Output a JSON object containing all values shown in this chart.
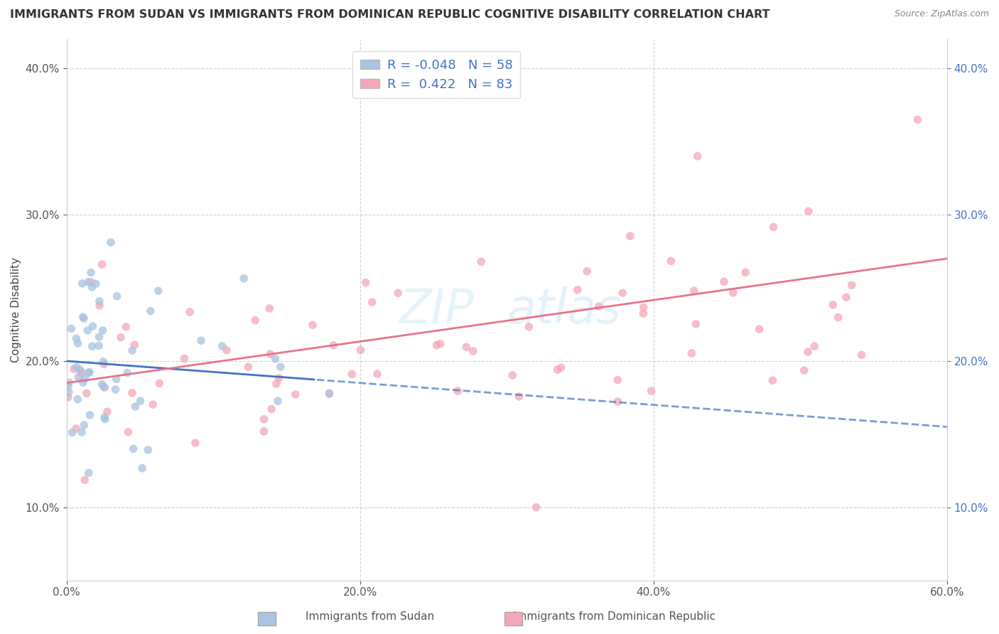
{
  "title": "IMMIGRANTS FROM SUDAN VS IMMIGRANTS FROM DOMINICAN REPUBLIC COGNITIVE DISABILITY CORRELATION CHART",
  "source": "Source: ZipAtlas.com",
  "ylabel_label": "Cognitive Disability",
  "xlim": [
    0.0,
    0.6
  ],
  "ylim": [
    0.05,
    0.42
  ],
  "xtick_vals": [
    0.0,
    0.2,
    0.4,
    0.6
  ],
  "ytick_vals": [
    0.1,
    0.2,
    0.3,
    0.4
  ],
  "sudan_color": "#a8c4e0",
  "dominican_color": "#f4a7b9",
  "sudan_line_color": "#4472c4",
  "dominican_line_color": "#e8748a",
  "sudan_R": -0.048,
  "sudan_N": 58,
  "dominican_R": 0.422,
  "dominican_N": 83,
  "legend_label_sudan": "Immigrants from Sudan",
  "legend_label_dominican": "Immigrants from Dominican Republic",
  "background_color": "#ffffff",
  "grid_color": "#cccccc"
}
